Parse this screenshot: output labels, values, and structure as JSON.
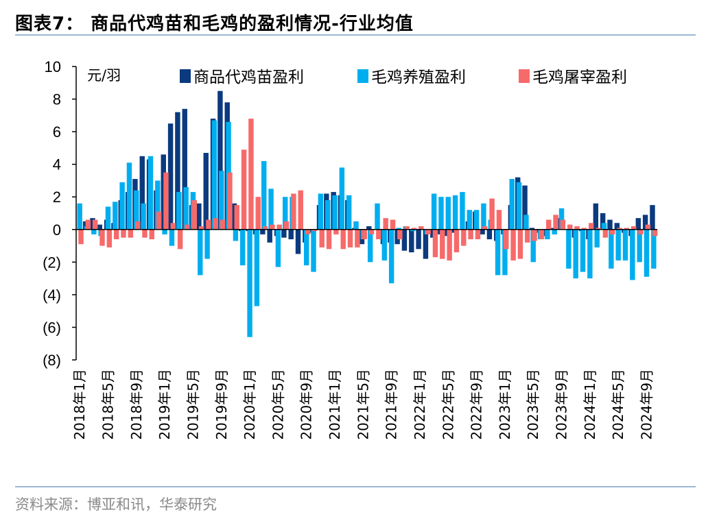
{
  "header": {
    "title": "图表7： 商品代鸡苗和毛鸡的盈利情况-行业均值"
  },
  "footer": {
    "source": "资料来源：博亚和讯，华泰研究"
  },
  "chart_data": {
    "type": "bar",
    "unit_label": "元/羽",
    "ylim": [
      -8,
      10
    ],
    "yticks": [
      10,
      8,
      6,
      4,
      2,
      0,
      -2,
      -4,
      -6,
      -8
    ],
    "ytick_labels": [
      "10",
      "8",
      "6",
      "4",
      "2",
      "0",
      "(2)",
      "(4)",
      "(6)",
      "(8)"
    ],
    "x_tick_labels": [
      "2018年1月",
      "2018年5月",
      "2018年9月",
      "2019年1月",
      "2019年5月",
      "2019年9月",
      "2020年1月",
      "2020年5月",
      "2020年9月",
      "2021年1月",
      "2021年5月",
      "2021年9月",
      "2022年1月",
      "2022年5月",
      "2022年9月",
      "2023年1月",
      "2023年5月",
      "2023年9月",
      "2024年1月",
      "2024年5月",
      "2024年9月"
    ],
    "x_tick_every": 4,
    "legend_position": "top",
    "series": [
      {
        "name": "商品代鸡苗盈利",
        "color": "#0b3a7e",
        "values": [
          0.0,
          0.5,
          0.7,
          0.3,
          0.6,
          0.4,
          1.8,
          2.3,
          3.1,
          4.5,
          4.3,
          2.4,
          4.6,
          6.5,
          7.2,
          7.4,
          1.5,
          1.6,
          4.7,
          6.8,
          8.5,
          7.8,
          1.6,
          -0.1,
          -0.1,
          -0.3,
          -0.3,
          -0.8,
          -0.4,
          -0.5,
          -0.6,
          -1.5,
          -0.8,
          -0.2,
          1.5,
          2.2,
          2.3,
          2.1,
          1.8,
          0.1,
          -0.9,
          0.2,
          0.0,
          -0.9,
          -0.8,
          -0.9,
          -1.3,
          -1.4,
          -1.2,
          -1.8,
          -0.5,
          -0.3,
          -0.4,
          -0.2,
          0.0,
          0.5,
          1.1,
          -0.3,
          -0.6,
          -0.7,
          -0.3,
          1.5,
          3.2,
          2.7,
          0.1,
          -0.2,
          -0.4,
          0.1,
          0.7,
          0.0,
          -0.5,
          -0.1,
          -0.6,
          1.6,
          1.0,
          0.6,
          0.4,
          -0.2,
          -0.4,
          0.7,
          0.9,
          1.5
        ]
      },
      {
        "name": "毛鸡养殖盈利",
        "color": "#00aeef",
        "values": [
          1.6,
          0.2,
          -0.3,
          -0.4,
          1.4,
          1.7,
          2.9,
          4.1,
          2.4,
          1.6,
          4.5,
          3.0,
          -0.3,
          -1.0,
          2.3,
          2.6,
          2.3,
          -2.8,
          -1.8,
          6.7,
          3.6,
          6.6,
          -0.7,
          -2.2,
          -6.6,
          -4.7,
          4.2,
          2.5,
          -2.3,
          2.0,
          2.0,
          0.0,
          -2.2,
          -2.6,
          2.2,
          1.8,
          2.1,
          3.8,
          2.1,
          0.5,
          -0.6,
          -2.0,
          1.6,
          -1.9,
          -3.3,
          0.1,
          0.2,
          -0.1,
          0.0,
          -0.3,
          2.2,
          2.0,
          2.0,
          2.1,
          2.3,
          1.2,
          1.2,
          1.6,
          0.6,
          -2.8,
          -2.8,
          3.1,
          2.9,
          0.9,
          -2.0,
          -0.6,
          -0.6,
          -0.3,
          1.3,
          -2.4,
          -3.0,
          -2.6,
          -3.0,
          -1.1,
          0.4,
          -2.4,
          -1.9,
          -1.9,
          -3.1,
          -2.0,
          -2.9,
          -2.4
        ]
      },
      {
        "name": "毛鸡屠宰盈利",
        "color": "#f76a6a",
        "values": [
          -0.9,
          0.6,
          0.6,
          -1.0,
          -1.1,
          -0.6,
          -0.5,
          -0.5,
          0.5,
          -0.5,
          -0.6,
          1.1,
          3.5,
          0.4,
          -1.2,
          0.3,
          1.8,
          0.2,
          0.6,
          0.7,
          0.6,
          3.5,
          1.5,
          4.9,
          6.8,
          2.0,
          0.2,
          0.3,
          0.3,
          0.5,
          2.2,
          2.4,
          -0.3,
          -0.1,
          -1.1,
          -1.2,
          -0.3,
          -1.2,
          -1.1,
          -1.1,
          -0.6,
          -0.3,
          -0.6,
          0.7,
          0.6,
          -0.6,
          0.2,
          0.1,
          0.2,
          -0.3,
          -1.7,
          -1.8,
          -1.9,
          -1.4,
          -1.0,
          -0.6,
          -0.6,
          0.2,
          1.9,
          1.2,
          -1.2,
          -1.9,
          -1.8,
          -0.8,
          -0.7,
          -0.6,
          0.6,
          0.9,
          0.6,
          0.3,
          0.2,
          0.1,
          0.4,
          0.1,
          -0.5,
          -0.3,
          0.1,
          0.1,
          0.2,
          -0.3,
          0.3,
          -0.4
        ]
      }
    ]
  }
}
